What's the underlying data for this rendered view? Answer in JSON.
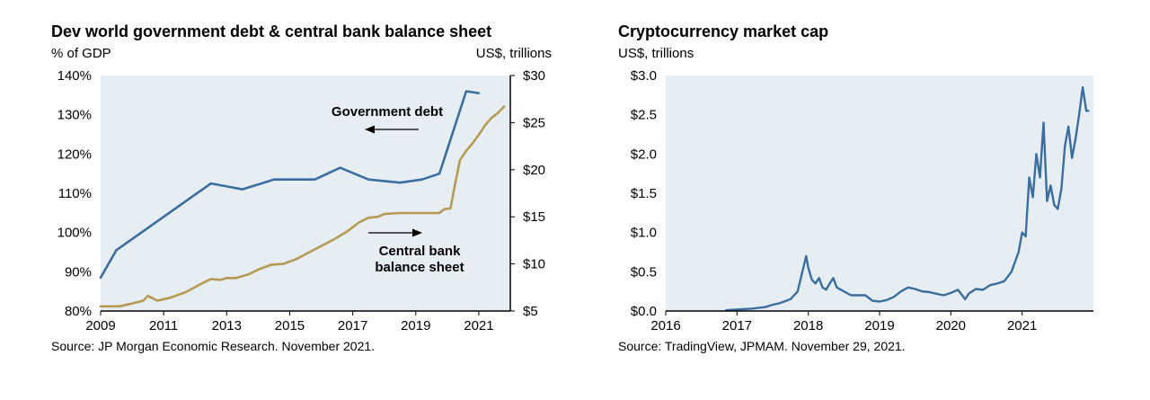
{
  "colors": {
    "plot_bg": "#e6eef4",
    "blue_line": "#3b6e9e",
    "gold_line": "#b59a53",
    "axis": "#000000"
  },
  "left": {
    "title": "Dev world government debt & central bank balance sheet",
    "left_unit": "% of GDP",
    "right_unit": "US$, trillions",
    "source": "Source: JP Morgan Economic Research. November 2021.",
    "annotation_gov": "Government debt",
    "annotation_cb_line1": "Central bank",
    "annotation_cb_line2": "balance sheet",
    "x_ticks": [
      "2009",
      "2011",
      "2013",
      "2015",
      "2017",
      "2019",
      "2021"
    ],
    "y_left_ticks": [
      "80%",
      "90%",
      "100%",
      "110%",
      "120%",
      "130%",
      "140%"
    ],
    "y_right_ticks": [
      "$5",
      "$10",
      "$15",
      "$20",
      "$25",
      "$30"
    ]
  },
  "right": {
    "title": "Cryptocurrency market cap",
    "unit": "US$, trillions",
    "source": "Source: TradingView, JPMAM. November 29, 2021.",
    "x_ticks": [
      "2016",
      "2017",
      "2018",
      "2019",
      "2020",
      "2021"
    ],
    "y_ticks": [
      "$0.0",
      "$0.5",
      "$1.0",
      "$1.5",
      "$2.0",
      "$2.5",
      "$3.0"
    ]
  },
  "chart_data": [
    {
      "type": "line",
      "title": "Dev world government debt & central bank balance sheet",
      "xlim": [
        2009,
        2022
      ],
      "ylim_left": [
        80,
        140
      ],
      "ylim_right": [
        5,
        30
      ],
      "ylabel_left": "% of GDP",
      "ylabel_right": "US$, trillions",
      "grid": false,
      "series": [
        {
          "name": "Government debt",
          "axis": "left",
          "color": "#3b6e9e",
          "x": [
            2009.0,
            2009.5,
            2012.5,
            2013.5,
            2014.5,
            2015.8,
            2016.6,
            2017.5,
            2018.5,
            2019.2,
            2019.75,
            2020.6,
            2021.0
          ],
          "y": [
            88.5,
            95.5,
            112.5,
            111.0,
            113.5,
            113.5,
            116.5,
            113.5,
            112.7,
            113.5,
            115.0,
            136.0,
            135.5
          ]
        },
        {
          "name": "Central bank balance sheet",
          "axis": "right",
          "color": "#b59a53",
          "x": [
            2009.0,
            2009.6,
            2010.0,
            2010.35,
            2010.5,
            2010.8,
            2011.2,
            2011.7,
            2012.2,
            2012.5,
            2012.8,
            2013.0,
            2013.3,
            2013.7,
            2014.0,
            2014.4,
            2014.8,
            2015.2,
            2015.6,
            2016.0,
            2016.4,
            2016.8,
            2017.2,
            2017.5,
            2017.8,
            2018.0,
            2018.5,
            2019.0,
            2019.5,
            2019.75,
            2019.9,
            2020.1,
            2020.25,
            2020.4,
            2020.6,
            2020.8,
            2021.0,
            2021.2,
            2021.4,
            2021.6,
            2021.8
          ],
          "y": [
            5.5,
            5.5,
            5.8,
            6.1,
            6.6,
            6.1,
            6.4,
            7.0,
            7.9,
            8.4,
            8.3,
            8.5,
            8.5,
            8.9,
            9.4,
            9.9,
            10.0,
            10.5,
            11.2,
            11.9,
            12.6,
            13.4,
            14.4,
            14.9,
            15.0,
            15.3,
            15.4,
            15.4,
            15.4,
            15.4,
            15.8,
            15.9,
            18.5,
            21.0,
            22.0,
            22.8,
            23.7,
            24.7,
            25.5,
            26.0,
            26.7
          ]
        }
      ]
    },
    {
      "type": "line",
      "title": "Cryptocurrency market cap",
      "xlim": [
        2016,
        2022
      ],
      "ylim": [
        0,
        3.0
      ],
      "ylabel": "US$, trillions",
      "grid": false,
      "series": [
        {
          "name": "",
          "color": "#3b6e9e",
          "x": [
            2016.85,
            2017.0,
            2017.2,
            2017.4,
            2017.5,
            2017.6,
            2017.75,
            2017.85,
            2017.93,
            2017.97,
            2018.0,
            2018.05,
            2018.1,
            2018.15,
            2018.2,
            2018.25,
            2018.3,
            2018.35,
            2018.4,
            2018.5,
            2018.6,
            2018.7,
            2018.8,
            2018.9,
            2019.0,
            2019.1,
            2019.2,
            2019.3,
            2019.4,
            2019.5,
            2019.6,
            2019.7,
            2019.8,
            2019.9,
            2020.0,
            2020.1,
            2020.2,
            2020.25,
            2020.35,
            2020.45,
            2020.55,
            2020.65,
            2020.75,
            2020.85,
            2020.95,
            2021.0,
            2021.05,
            2021.1,
            2021.15,
            2021.2,
            2021.25,
            2021.3,
            2021.35,
            2021.4,
            2021.45,
            2021.5,
            2021.55,
            2021.6,
            2021.65,
            2021.7,
            2021.75,
            2021.8,
            2021.85,
            2021.9,
            2021.93
          ],
          "y": [
            0.01,
            0.02,
            0.03,
            0.05,
            0.08,
            0.1,
            0.15,
            0.25,
            0.55,
            0.7,
            0.55,
            0.4,
            0.35,
            0.42,
            0.3,
            0.27,
            0.35,
            0.42,
            0.3,
            0.25,
            0.2,
            0.2,
            0.2,
            0.13,
            0.12,
            0.14,
            0.18,
            0.25,
            0.3,
            0.28,
            0.25,
            0.24,
            0.22,
            0.2,
            0.23,
            0.27,
            0.15,
            0.22,
            0.28,
            0.27,
            0.33,
            0.35,
            0.38,
            0.5,
            0.75,
            1.0,
            0.95,
            1.7,
            1.45,
            2.0,
            1.7,
            2.4,
            1.4,
            1.6,
            1.35,
            1.3,
            1.55,
            2.1,
            2.35,
            1.95,
            2.2,
            2.5,
            2.85,
            2.55,
            2.55
          ]
        }
      ]
    }
  ]
}
